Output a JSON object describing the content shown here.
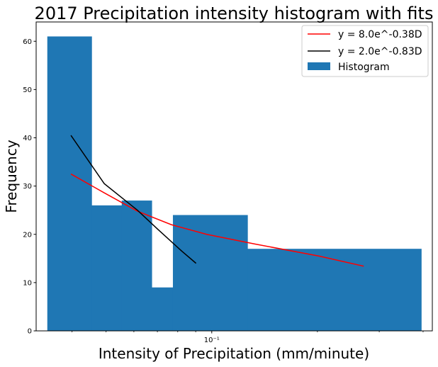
{
  "chart_data": {
    "type": "bar",
    "title": "2017 Precipitation intensity histogram with fits",
    "xlabel": "Intensity of Precipitation (mm/minute)",
    "ylabel": "Frequency",
    "x_scale": "log",
    "xlim": [
      0.0316,
      0.425
    ],
    "ylim": [
      0,
      64
    ],
    "yticks": [
      0,
      10,
      20,
      30,
      40,
      50,
      60
    ],
    "xticks": [
      {
        "value": 0.1,
        "label": "10⁻¹"
      }
    ],
    "grid": false,
    "legend_position": "top-right",
    "histogram": {
      "name": "Histogram",
      "color": "#1f77b4",
      "bins": [
        {
          "x0": 0.034,
          "x1": 0.0455,
          "count": 61
        },
        {
          "x0": 0.0455,
          "x1": 0.0554,
          "count": 26
        },
        {
          "x0": 0.0554,
          "x1": 0.0675,
          "count": 27
        },
        {
          "x0": 0.0675,
          "x1": 0.0775,
          "count": 9
        },
        {
          "x0": 0.0775,
          "x1": 0.1265,
          "count": 24
        },
        {
          "x0": 0.1265,
          "x1": 0.3955,
          "count": 17
        }
      ]
    },
    "series": [
      {
        "name": "y = 8.0e^-0.38D",
        "color": "#ff0000",
        "x": [
          0.0397,
          0.0494,
          0.0614,
          0.0767,
          0.0967,
          0.1326,
          0.2019,
          0.271
        ],
        "y": [
          32.5,
          28.6,
          24.8,
          22.0,
          20.0,
          18.0,
          15.5,
          13.4
        ]
      },
      {
        "name": "y = 2.0e^-0.83D",
        "color": "#000000",
        "x": [
          0.0397,
          0.0494,
          0.0614,
          0.0703,
          0.0822,
          0.0902
        ],
        "y": [
          40.5,
          30.5,
          25.0,
          21.0,
          16.5,
          14.0
        ]
      }
    ]
  }
}
